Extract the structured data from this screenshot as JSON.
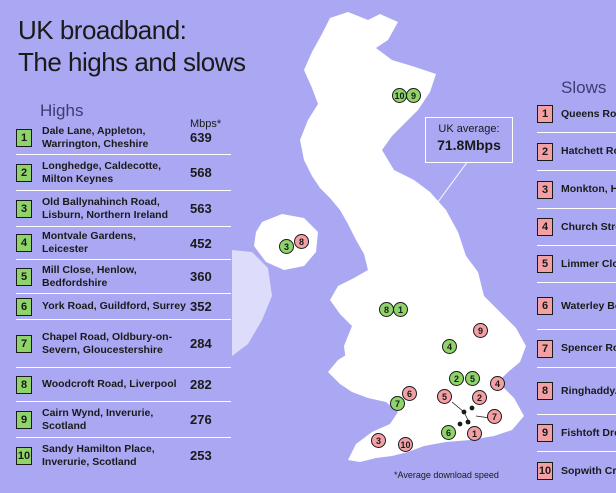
{
  "title_line1": "UK broadband:",
  "title_line2": "The highs and slows",
  "highs": {
    "heading": "Highs",
    "unit_header": "Mbps*",
    "items": [
      {
        "rank": "1",
        "place": "Dale Lane, Appleton, Warrington, Cheshire",
        "mbps": "639"
      },
      {
        "rank": "2",
        "place": "Longhedge, Caldecotte, Milton Keynes",
        "mbps": "568"
      },
      {
        "rank": "3",
        "place": "Old Ballynahinch Road, Lisburn, Northern Ireland",
        "mbps": "563"
      },
      {
        "rank": "4",
        "place": "Montvale Gardens, Leicester",
        "mbps": "452"
      },
      {
        "rank": "5",
        "place": "Mill Close, Henlow, Bedfordshire",
        "mbps": "360"
      },
      {
        "rank": "6",
        "place": "York Road, Guildford, Surrey",
        "mbps": "352"
      },
      {
        "rank": "7",
        "place": "Chapel Road, Oldbury-on-Severn, Gloucestershire",
        "mbps": "284"
      },
      {
        "rank": "8",
        "place": "Woodcroft Road, Liverpool",
        "mbps": "282"
      },
      {
        "rank": "9",
        "place": "Cairn Wynd, Inverurie, Scotland",
        "mbps": "276"
      },
      {
        "rank": "10",
        "place": "Sandy Hamilton Place, Inverurie, Scotland",
        "mbps": "253"
      }
    ]
  },
  "slows": {
    "heading": "Slows",
    "items": [
      {
        "rank": "1",
        "place": "Queens Ro... Weybridge,..."
      },
      {
        "rank": "2",
        "place": "Hatchett Ro... Hounslow, L..."
      },
      {
        "rank": "3",
        "place": "Monkton, H... Exeter"
      },
      {
        "rank": "4",
        "place": "Church Stre... Great Maple..."
      },
      {
        "rank": "5",
        "place": "Limmer Clo... Wokingham..."
      },
      {
        "rank": "6",
        "place": "Waterley Bo... North Nible... Glouceste..."
      },
      {
        "rank": "7",
        "place": "Spencer Ro... Caterham, S..."
      },
      {
        "rank": "8",
        "place": "Ringhaddy... Killinchy, Northern Ire..."
      },
      {
        "rank": "9",
        "place": "Fishtoft Dro... Boston, Lin..."
      },
      {
        "rank": "10",
        "place": "Sopwith Cre... Wimborne,..."
      }
    ]
  },
  "average": {
    "label": "UK average:",
    "value": "71.8Mbps"
  },
  "footnote": "*Average download speed",
  "colors": {
    "background": "#aaa8f2",
    "land": "#ffffff",
    "high": "#8fd36b",
    "slow": "#f2a0a4"
  },
  "map_markers": [
    {
      "label": "10",
      "type": "high"
    },
    {
      "label": "9",
      "type": "high"
    },
    {
      "label": "3",
      "type": "high"
    },
    {
      "label": "8",
      "type": "slow"
    },
    {
      "label": "8",
      "type": "high"
    },
    {
      "label": "1",
      "type": "high"
    },
    {
      "label": "9",
      "type": "slow"
    },
    {
      "label": "4",
      "type": "high"
    },
    {
      "label": "2",
      "type": "high"
    },
    {
      "label": "5",
      "type": "high"
    },
    {
      "label": "4",
      "type": "slow"
    },
    {
      "label": "6",
      "type": "slow"
    },
    {
      "label": "7",
      "type": "high"
    },
    {
      "label": "5",
      "type": "slow"
    },
    {
      "label": "2",
      "type": "slow"
    },
    {
      "label": "7",
      "type": "slow"
    },
    {
      "label": "6",
      "type": "high"
    },
    {
      "label": "1",
      "type": "slow"
    },
    {
      "label": "3",
      "type": "slow"
    },
    {
      "label": "10",
      "type": "slow"
    }
  ]
}
